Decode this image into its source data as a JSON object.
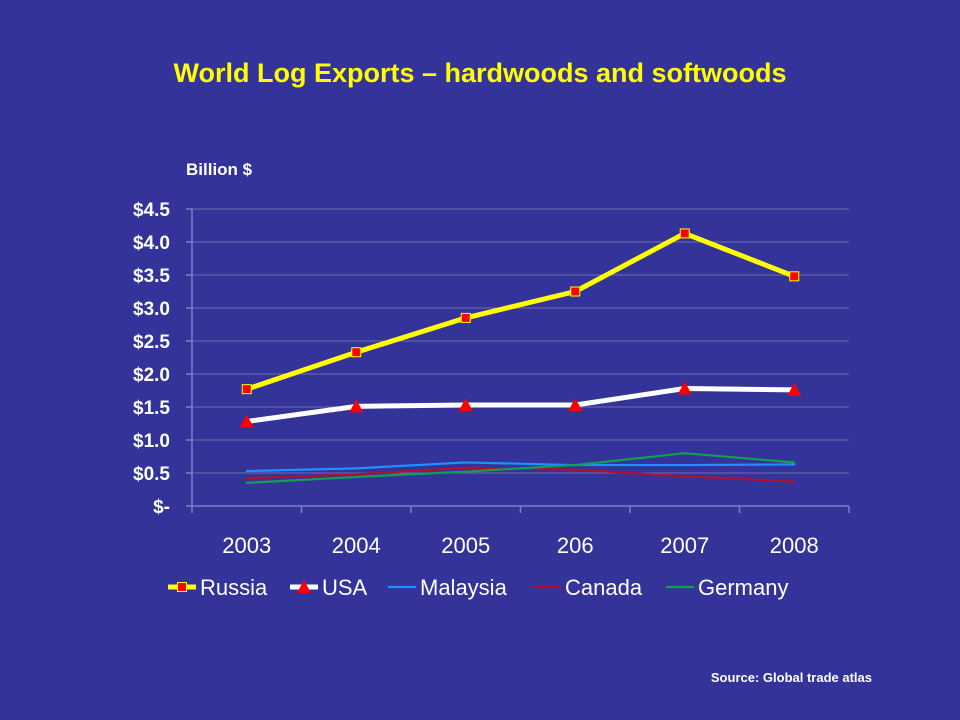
{
  "slide": {
    "title": "World Log Exports – hardwoods and softwoods",
    "source": "Source: Global trade atlas"
  },
  "chart_data": {
    "type": "line",
    "title": "World Log Exports – hardwoods and softwoods",
    "ylabel": "Billion $",
    "xlabel": "",
    "categories": [
      "2003",
      "2004",
      "2005",
      "206",
      "2007",
      "2008"
    ],
    "ylim": [
      0,
      4.5
    ],
    "yticks": [
      0,
      0.5,
      1.0,
      1.5,
      2.0,
      2.5,
      3.0,
      3.5,
      4.0,
      4.5
    ],
    "ytick_labels": [
      "$-",
      "$0.5",
      "$1.0",
      "$1.5",
      "$2.0",
      "$2.5",
      "$3.0",
      "$3.5",
      "$4.0",
      "$4.5"
    ],
    "grid": true,
    "legend_position": "bottom",
    "series": [
      {
        "name": "Russia",
        "color": "#FFFF00",
        "marker": "square",
        "marker_color": "#FF0000",
        "values": [
          1.77,
          2.33,
          2.85,
          3.25,
          4.13,
          3.48
        ]
      },
      {
        "name": "USA",
        "color": "#FFFFFF",
        "marker": "triangle",
        "marker_color": "#FF0000",
        "values": [
          1.28,
          1.51,
          1.53,
          1.53,
          1.78,
          1.76
        ]
      },
      {
        "name": "Malaysia",
        "color": "#1E90FF",
        "values": [
          0.53,
          0.57,
          0.66,
          0.62,
          0.62,
          0.63
        ]
      },
      {
        "name": "Canada",
        "color": "#B01030",
        "values": [
          0.42,
          0.48,
          0.58,
          0.55,
          0.45,
          0.37
        ]
      },
      {
        "name": "Germany",
        "color": "#10A050",
        "values": [
          0.35,
          0.44,
          0.52,
          0.62,
          0.8,
          0.66
        ]
      }
    ]
  }
}
